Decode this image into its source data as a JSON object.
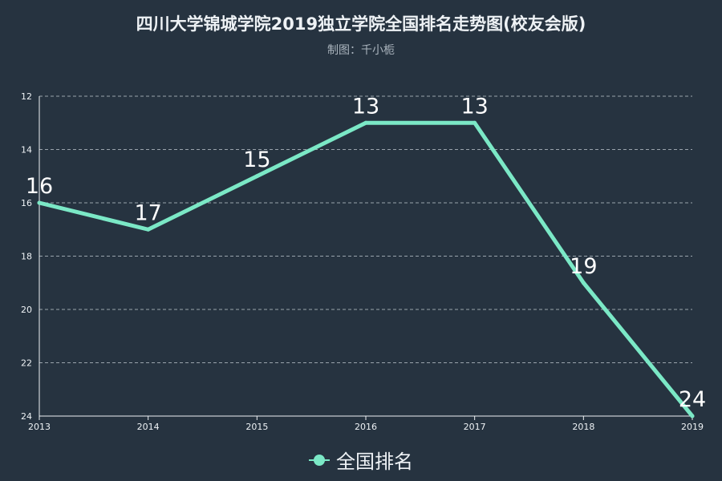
{
  "title": "四川大学锦城学院2019独立学院全国排名走势图(校友会版)",
  "subtitle": "制图：千小栀",
  "colors": {
    "background": "#263340",
    "series": "#7be8c6",
    "grid": "#9aa4ad"
  },
  "chart_data": {
    "type": "line",
    "categories": [
      "2013",
      "2014",
      "2015",
      "2016",
      "2017",
      "2018",
      "2019"
    ],
    "series": [
      {
        "name": "全国排名",
        "values": [
          16,
          17,
          15,
          13,
          13,
          19,
          24
        ]
      }
    ],
    "ylim": [
      12,
      24
    ],
    "y_inverted": true,
    "yticks": [
      "12",
      "14",
      "16",
      "18",
      "20",
      "22",
      "24"
    ],
    "grid": true,
    "legend": "bottom-center"
  }
}
